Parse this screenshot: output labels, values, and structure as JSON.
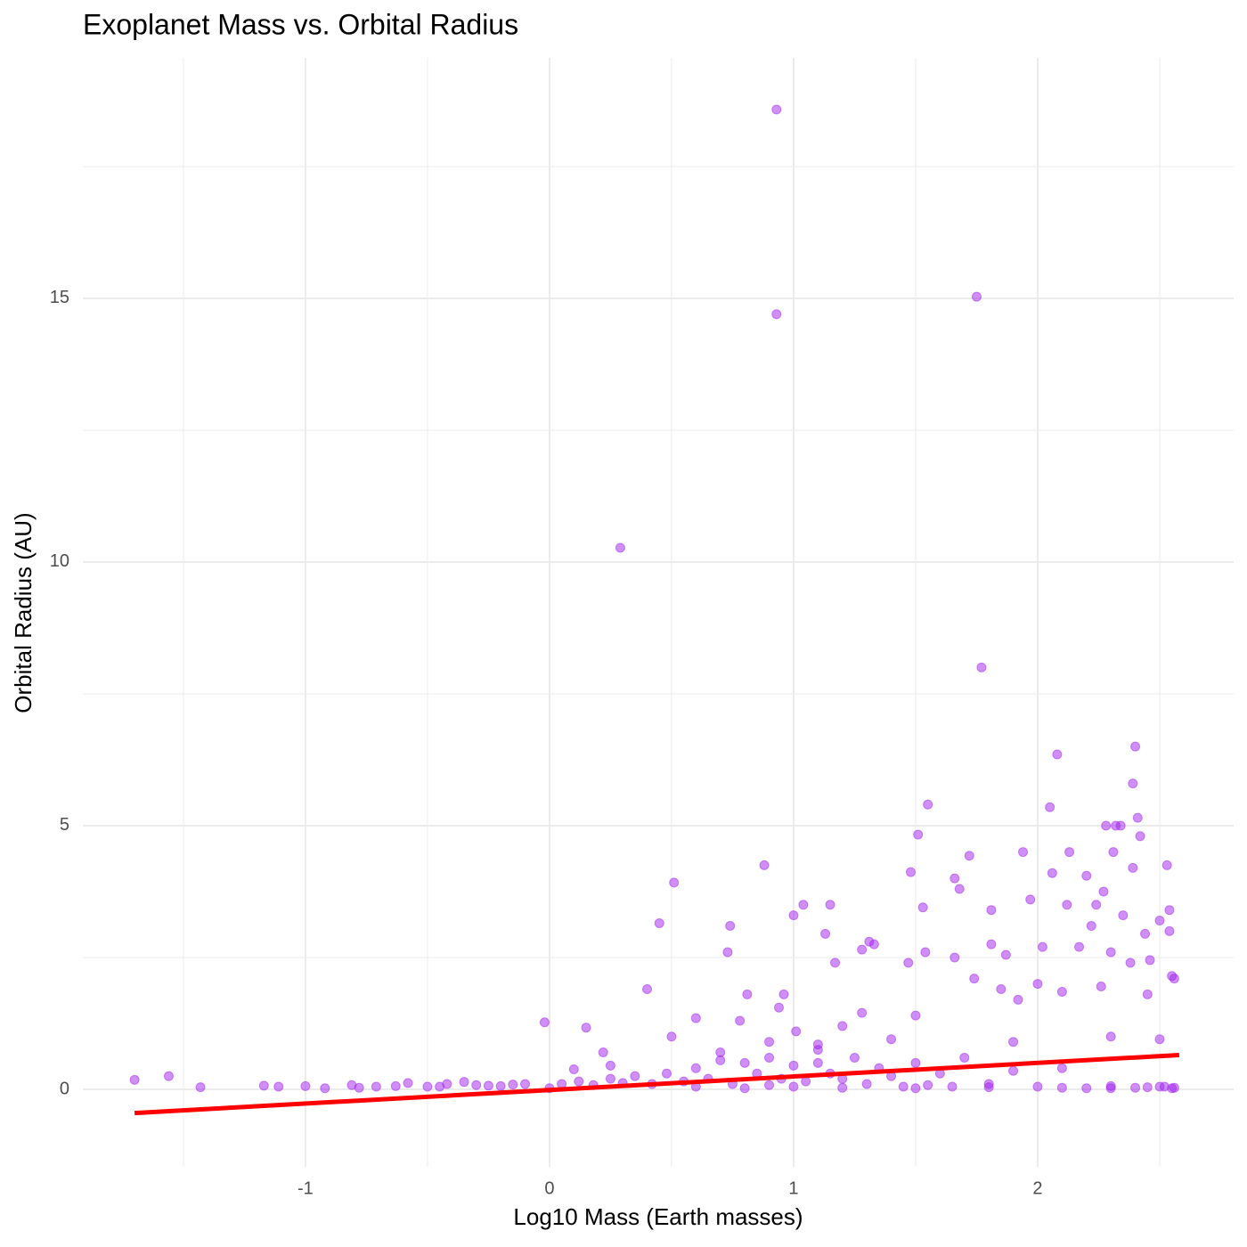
{
  "chart_data": {
    "type": "scatter",
    "title": "Exoplanet Mass vs. Orbital Radius",
    "x_label": "Log10 Mass (Earth masses)",
    "y_label": "Orbital Radius (AU)",
    "color": "#a020f0",
    "xlim": [
      -1.912,
      2.803
    ],
    "ylim": [
      -1.47,
      19.56
    ],
    "xticks": [
      -1,
      0,
      1,
      2
    ],
    "yticks": [
      0,
      5,
      10,
      15
    ],
    "xminor": [
      -1.5,
      -0.5,
      0.5,
      1.5,
      2.5
    ],
    "yminor": [
      2.5,
      7.5,
      12.5,
      17.5
    ],
    "grid": true,
    "x": [
      -1.7,
      -1.56,
      -1.43,
      -1.17,
      -1.11,
      -1.0,
      -0.92,
      -0.81,
      -0.78,
      -0.71,
      -0.63,
      -0.58,
      -0.5,
      -0.42,
      -0.35,
      -0.25,
      -0.15,
      -0.02,
      0.1,
      0.15,
      0.22,
      0.25,
      0.29,
      0.4,
      0.45,
      0.51,
      0.5,
      0.6,
      0.74,
      0.73,
      0.81,
      0.78,
      0.88,
      0.93,
      0.93,
      0.94,
      0.96,
      1.0,
      1.04,
      1.01,
      1.13,
      1.15,
      1.17,
      1.2,
      1.28,
      1.31,
      1.33,
      1.28,
      1.47,
      1.48,
      1.51,
      1.55,
      1.53,
      1.54,
      1.5,
      1.66,
      1.68,
      1.66,
      1.72,
      1.75,
      1.77,
      1.74,
      1.81,
      1.81,
      1.87,
      1.94,
      1.97,
      1.92,
      2.05,
      2.06,
      2.08,
      2.12,
      2.13,
      2.17,
      2.2,
      2.22,
      2.24,
      2.27,
      2.28,
      2.31,
      2.32,
      2.34,
      2.35,
      2.38,
      2.39,
      2.4,
      2.39,
      2.41,
      2.42,
      2.44,
      2.46,
      2.5,
      2.53,
      2.54,
      2.54,
      2.55,
      2.56,
      2.02,
      2.1,
      2.26,
      2.3,
      2.45,
      1.85,
      2.0,
      0.9,
      1.1,
      1.4,
      1.9,
      2.3,
      2.5,
      -0.45,
      -0.3,
      -0.2,
      -0.1,
      0.0,
      0.05,
      0.12,
      0.18,
      0.25,
      0.3,
      0.35,
      0.42,
      0.48,
      0.55,
      0.6,
      0.65,
      0.7,
      0.75,
      0.8,
      0.85,
      0.9,
      0.95,
      1.0,
      1.05,
      1.1,
      1.15,
      1.2,
      1.25,
      1.3,
      1.35,
      1.4,
      1.45,
      1.5,
      1.55,
      1.6,
      1.65,
      1.7,
      1.8,
      1.9,
      2.0,
      2.1,
      2.2,
      2.3,
      2.4,
      2.5,
      2.55,
      0.6,
      0.8,
      0.9,
      1.0,
      1.2,
      1.5,
      1.8,
      2.1,
      2.3,
      2.45,
      2.52,
      0.7,
      1.1,
      2.56
    ],
    "values": [
      0.18,
      0.25,
      0.04,
      0.07,
      0.05,
      0.06,
      0.02,
      0.08,
      0.03,
      0.05,
      0.06,
      0.12,
      0.05,
      0.1,
      0.14,
      0.07,
      0.09,
      1.27,
      0.38,
      1.17,
      0.7,
      0.45,
      10.27,
      1.9,
      3.15,
      3.92,
      1.0,
      1.35,
      3.1,
      2.6,
      1.8,
      1.3,
      4.25,
      18.58,
      14.7,
      1.55,
      1.8,
      3.3,
      3.5,
      1.1,
      2.95,
      3.5,
      2.4,
      1.2,
      2.65,
      2.8,
      2.75,
      1.45,
      2.4,
      4.12,
      4.83,
      5.4,
      3.45,
      2.6,
      1.4,
      4.0,
      3.8,
      2.5,
      4.43,
      15.03,
      8.0,
      2.1,
      3.4,
      2.75,
      2.55,
      4.5,
      3.6,
      1.7,
      5.35,
      4.1,
      6.35,
      3.5,
      4.5,
      2.7,
      4.05,
      3.1,
      3.5,
      3.75,
      5.0,
      4.5,
      5.0,
      5.0,
      3.3,
      2.4,
      4.2,
      6.5,
      5.8,
      5.15,
      4.8,
      2.95,
      2.45,
      3.2,
      4.25,
      3.4,
      3.0,
      2.15,
      2.1,
      2.7,
      1.85,
      1.95,
      2.6,
      1.8,
      1.9,
      2.0,
      0.9,
      0.85,
      0.95,
      0.9,
      1.0,
      0.95,
      0.05,
      0.08,
      0.06,
      0.1,
      0.02,
      0.1,
      0.15,
      0.08,
      0.2,
      0.12,
      0.25,
      0.1,
      0.3,
      0.15,
      0.4,
      0.2,
      0.55,
      0.1,
      0.5,
      0.3,
      0.6,
      0.2,
      0.45,
      0.15,
      0.5,
      0.3,
      0.2,
      0.6,
      0.1,
      0.4,
      0.25,
      0.05,
      0.5,
      0.08,
      0.3,
      0.05,
      0.6,
      0.1,
      0.35,
      0.05,
      0.4,
      0.02,
      0.06,
      0.03,
      0.05,
      0.02,
      0.05,
      0.02,
      0.08,
      0.05,
      0.03,
      0.02,
      0.04,
      0.03,
      0.02,
      0.04,
      0.05,
      0.7,
      0.75,
      0.03
    ],
    "trend": {
      "color": "#ff0000",
      "x": [
        -1.7,
        2.58
      ],
      "values": [
        -0.45,
        0.65
      ]
    }
  }
}
